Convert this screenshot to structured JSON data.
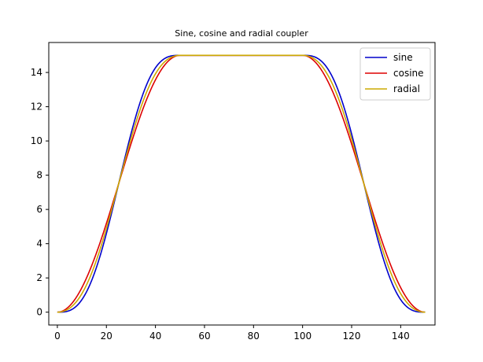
{
  "chart_data": {
    "type": "line",
    "title": "Sine, cosine and radial coupler",
    "xlabel": "",
    "ylabel": "",
    "xlim": [
      -3.5,
      154
    ],
    "ylim": [
      -0.75,
      15.75
    ],
    "xticks": [
      0,
      20,
      40,
      60,
      80,
      100,
      120,
      140
    ],
    "yticks": [
      0,
      2,
      4,
      6,
      8,
      10,
      12,
      14
    ],
    "grid": false,
    "legend_position": "top-right",
    "profile": {
      "rise_start": 0,
      "rise_end": 50,
      "fall_start": 100,
      "fall_end": 150,
      "height": 15
    },
    "series": [
      {
        "name": "sine",
        "color": "#0000cc",
        "curve": "sine"
      },
      {
        "name": "cosine",
        "color": "#dd0000",
        "curve": "cosine"
      },
      {
        "name": "radial",
        "color": "#ccaa00",
        "curve": "radial"
      }
    ]
  }
}
